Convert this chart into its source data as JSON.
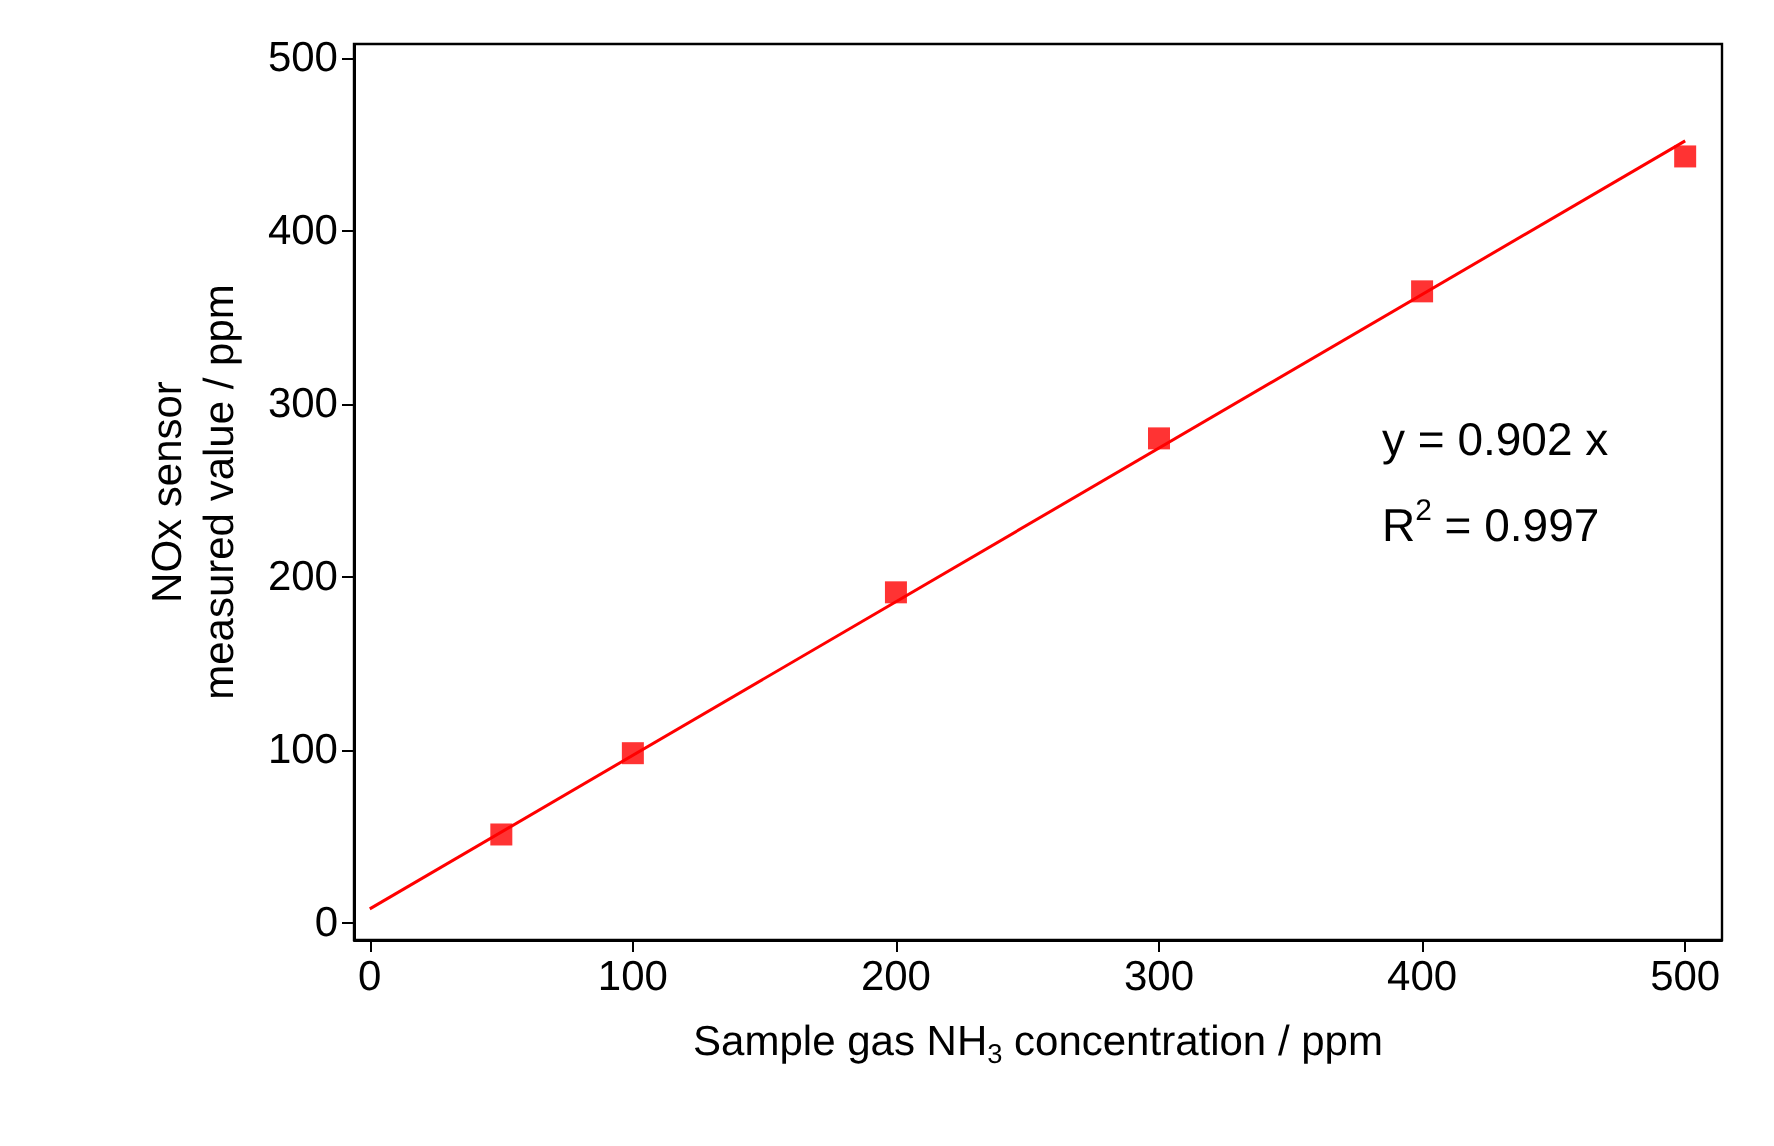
{
  "chart_data": {
    "type": "scatter",
    "xlabel": "Sample gas NH$_{3}$ concentration / ppm",
    "ylabel": "NOx sensor\nmeasured value / ppm",
    "x": [
      50,
      100,
      200,
      300,
      400,
      500
    ],
    "series": [
      {
        "color": "#ff0000",
        "marker": "square",
        "values": [
          51,
          98,
          191,
          280,
          365,
          443
        ]
      },
      {
        "type": "line",
        "color": "#ff0000",
        "marker": "none",
        "line_style": "solid",
        "x": [
          0,
          500
        ],
        "values": [
          8,
          452
        ]
      }
    ],
    "annotations": [
      "y = 0.902 x",
      "R$^{2}$ = 0.997"
    ],
    "xlim": [
      -6,
      514
    ],
    "xticks": [
      0,
      100,
      200,
      300,
      400,
      500
    ],
    "ylim": [
      -10,
      508
    ],
    "yticks": [
      0,
      100,
      200,
      300,
      400,
      500
    ],
    "grid": false
  }
}
